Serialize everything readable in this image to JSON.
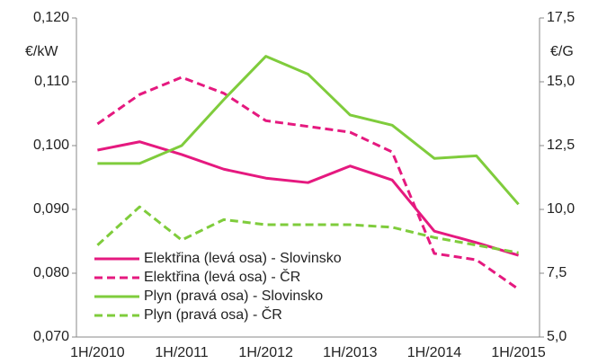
{
  "chart_data": {
    "type": "line",
    "y_label": "€/kW",
    "y2_label": "€/G",
    "categories": [
      "1H/2010",
      null,
      "1H/2011",
      null,
      "1H/2012",
      null,
      "1H/2013",
      null,
      "1H/2014",
      null,
      "1H/2015"
    ],
    "series": [
      {
        "name": "Elektřina (levá osa) - Slovinsko",
        "color": "#e5197f",
        "dash": "solid",
        "values": [
          0.0993,
          0.1006,
          0.0986,
          0.0963,
          0.0949,
          0.0942,
          0.0968,
          0.0946,
          0.0866,
          0.0848,
          0.0828
        ]
      },
      {
        "name": "Elektřina (levá osa) - ČR",
        "color": "#e5197f",
        "dash": "dashed",
        "values": [
          0.1034,
          0.108,
          0.1107,
          0.1082,
          0.1039,
          0.103,
          0.1021,
          0.099,
          0.0831,
          0.0821,
          0.0775
        ]
      },
      {
        "name": "Plyn (pravá osa) - Slovinsko",
        "color": "#7fcc3c",
        "dash": "solid",
        "axis": "y2",
        "values": [
          11.8,
          11.8,
          12.5,
          14.3,
          16.0,
          15.3,
          13.7,
          13.3,
          12.0,
          12.1,
          10.2
        ]
      },
      {
        "name": "Plyn (pravá osa) - ČR",
        "color": "#7fcc3c",
        "dash": "dashed",
        "axis": "y2",
        "values": [
          8.6,
          10.1,
          8.8,
          9.6,
          9.4,
          9.4,
          9.4,
          9.3,
          8.9,
          8.6,
          8.3
        ]
      }
    ],
    "ylim": [
      0.07,
      0.12
    ],
    "yticks": [
      {
        "value": 0.07,
        "label": "0,070"
      },
      {
        "value": 0.08,
        "label": "0,080"
      },
      {
        "value": 0.09,
        "label": "0,090"
      },
      {
        "value": 0.1,
        "label": "0,100"
      },
      {
        "value": 0.11,
        "label": "0,110"
      },
      {
        "value": 0.12,
        "label": "0,120"
      }
    ],
    "y2lim": [
      5,
      17.5
    ],
    "y2ticks": [
      {
        "value": 5,
        "label": "5,0"
      },
      {
        "value": 7.5,
        "label": "7,5"
      },
      {
        "value": 10,
        "label": "10,0"
      },
      {
        "value": 12.5,
        "label": "12,5"
      },
      {
        "value": 15,
        "label": "15,0"
      },
      {
        "value": 17.5,
        "label": "17,5"
      }
    ],
    "legend": "lower left",
    "grid": false
  }
}
